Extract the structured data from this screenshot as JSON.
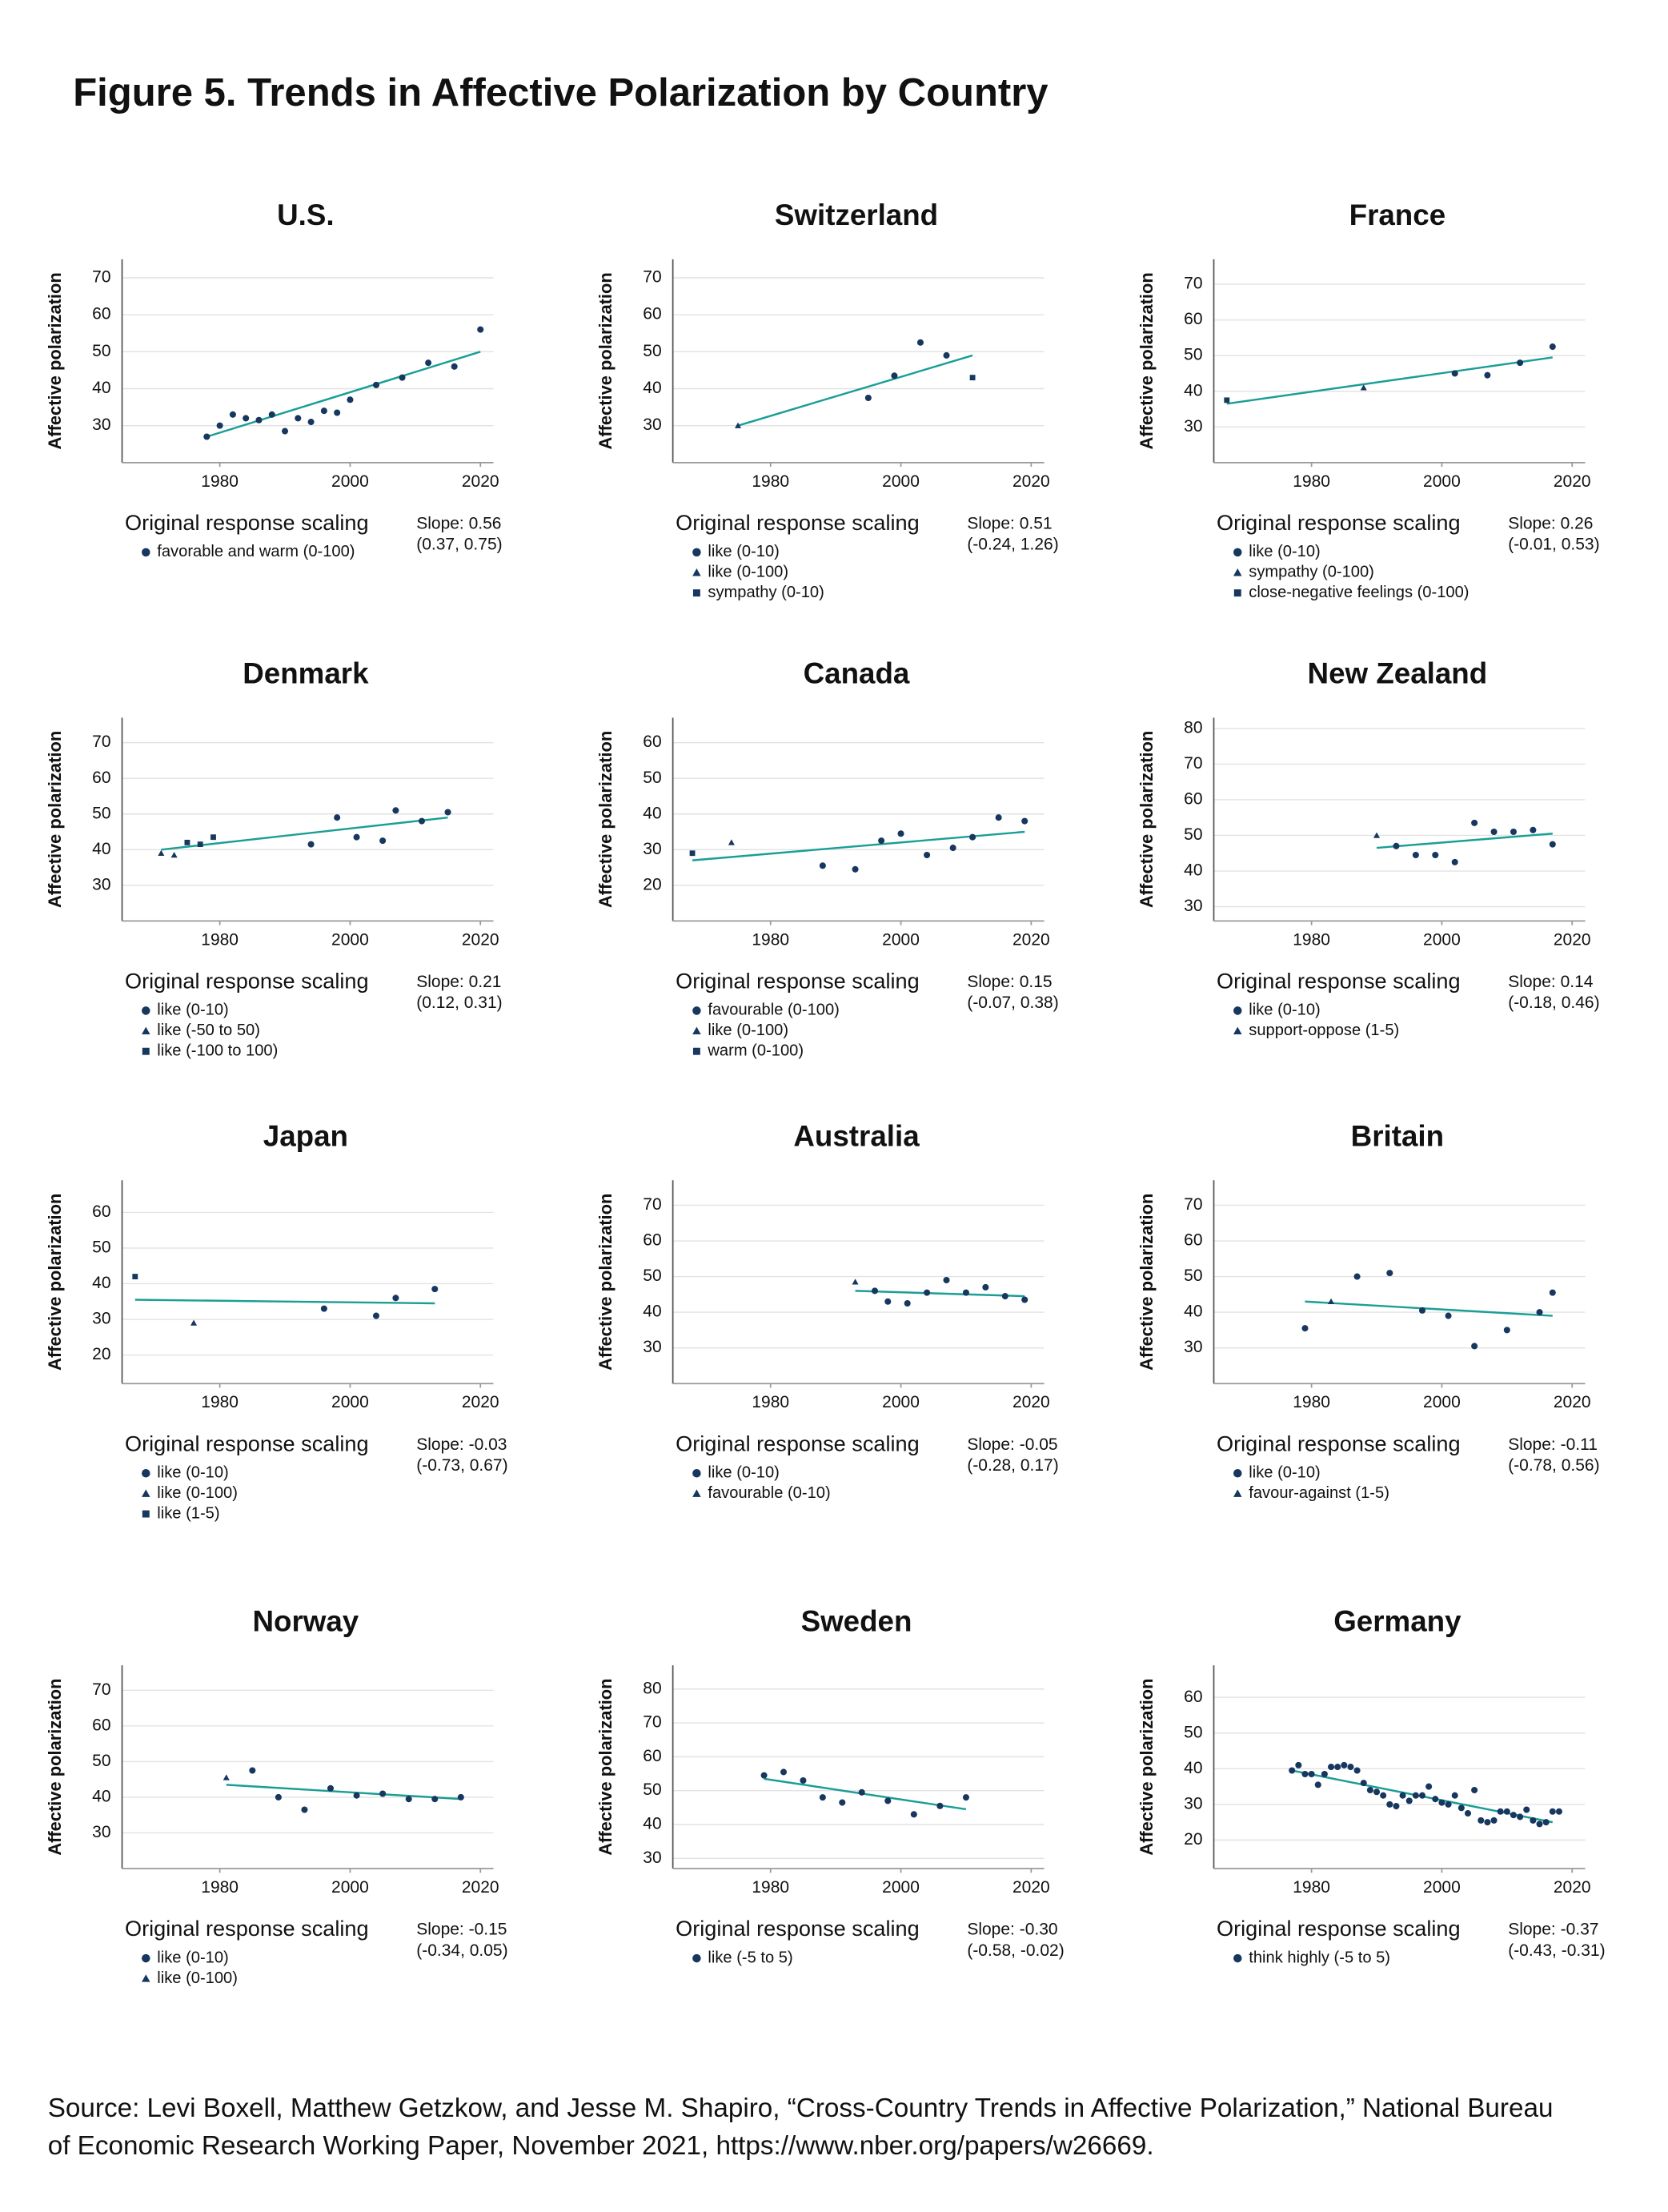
{
  "title": "Figure 5. Trends in Affective Polarization by Country",
  "chart_data": [
    {
      "type": "scatter",
      "title": "U.S.",
      "y_label": "Affective polarization",
      "legend_title": "Original response scaling",
      "slope_label": "Slope: 0.56",
      "slope_ci": "(0.37, 0.75)",
      "color": "#17375e",
      "trend_color": "#1a9e96",
      "xlim": [
        1965,
        2022
      ],
      "xticks": [
        1980,
        2000,
        2020
      ],
      "ylim": [
        20,
        75
      ],
      "yticks": [
        30,
        40,
        50,
        60,
        70
      ],
      "series": [
        {
          "name": "favorable and warm (0-100)",
          "marker": "circle",
          "x": [
            1978,
            1980,
            1982,
            1984,
            1986,
            1988,
            1990,
            1992,
            1994,
            1996,
            1998,
            2000,
            2004,
            2008,
            2012,
            2016,
            2020
          ],
          "values": [
            27,
            30,
            33,
            32,
            31.5,
            33,
            28.5,
            32,
            31,
            34,
            33.5,
            37,
            41,
            43,
            47,
            46,
            56
          ]
        }
      ],
      "trend": {
        "x": [
          1978,
          2020
        ],
        "values": [
          27,
          50
        ]
      }
    },
    {
      "type": "scatter",
      "title": "Switzerland",
      "y_label": "Affective polarization",
      "legend_title": "Original response scaling",
      "slope_label": "Slope: 0.51",
      "slope_ci": "(-0.24, 1.26)",
      "color": "#17375e",
      "trend_color": "#1a9e96",
      "xlim": [
        1965,
        2022
      ],
      "xticks": [
        1980,
        2000,
        2020
      ],
      "ylim": [
        20,
        75
      ],
      "yticks": [
        30,
        40,
        50,
        60,
        70
      ],
      "series": [
        {
          "name": "like (0-10)",
          "marker": "circle",
          "x": [
            1995,
            1999,
            2003,
            2007
          ],
          "values": [
            37.5,
            43.5,
            52.5,
            49
          ]
        },
        {
          "name": "like (0-100)",
          "marker": "triangle",
          "x": [
            1975
          ],
          "values": [
            30
          ]
        },
        {
          "name": "sympathy (0-10)",
          "marker": "square",
          "x": [
            2011
          ],
          "values": [
            43
          ]
        }
      ],
      "trend": {
        "x": [
          1975,
          2011
        ],
        "values": [
          30,
          49
        ]
      }
    },
    {
      "type": "scatter",
      "title": "France",
      "y_label": "Affective polarization",
      "legend_title": "Original response scaling",
      "slope_label": "Slope: 0.26",
      "slope_ci": "(-0.01, 0.53)",
      "color": "#17375e",
      "trend_color": "#1a9e96",
      "xlim": [
        1965,
        2022
      ],
      "xticks": [
        1980,
        2000,
        2020
      ],
      "ylim": [
        20,
        77
      ],
      "yticks": [
        30,
        40,
        50,
        60,
        70
      ],
      "series": [
        {
          "name": "like (0-10)",
          "marker": "circle",
          "x": [
            2002,
            2007,
            2012,
            2017
          ],
          "values": [
            45,
            44.5,
            48,
            52.5
          ]
        },
        {
          "name": "sympathy (0-100)",
          "marker": "triangle",
          "x": [
            1988
          ],
          "values": [
            41
          ]
        },
        {
          "name": "close-negative feelings (0-100)",
          "marker": "square",
          "x": [
            1967
          ],
          "values": [
            37.5
          ]
        }
      ],
      "trend": {
        "x": [
          1967,
          2017
        ],
        "values": [
          36.5,
          49.5
        ]
      }
    },
    {
      "type": "scatter",
      "title": "Denmark",
      "y_label": "Affective polarization",
      "legend_title": "Original response scaling",
      "slope_label": "Slope: 0.21",
      "slope_ci": "(0.12, 0.31)",
      "color": "#17375e",
      "trend_color": "#1a9e96",
      "xlim": [
        1965,
        2022
      ],
      "xticks": [
        1980,
        2000,
        2020
      ],
      "ylim": [
        20,
        77
      ],
      "yticks": [
        30,
        40,
        50,
        60,
        70
      ],
      "series": [
        {
          "name": "like (0-10)",
          "marker": "circle",
          "x": [
            1994,
            1998,
            2001,
            2005,
            2007,
            2011,
            2015
          ],
          "values": [
            41.5,
            49,
            43.5,
            42.5,
            51,
            48,
            50.5
          ]
        },
        {
          "name": "like (-50 to 50)",
          "marker": "triangle",
          "x": [
            1971,
            1973
          ],
          "values": [
            39,
            38.5
          ]
        },
        {
          "name": "like (-100 to 100)",
          "marker": "square",
          "x": [
            1975,
            1977,
            1979
          ],
          "values": [
            42,
            41.5,
            43.5
          ]
        }
      ],
      "trend": {
        "x": [
          1971,
          2015
        ],
        "values": [
          40,
          49
        ]
      }
    },
    {
      "type": "scatter",
      "title": "Canada",
      "y_label": "Affective polarization",
      "legend_title": "Original response scaling",
      "slope_label": "Slope: 0.15",
      "slope_ci": "(-0.07, 0.38)",
      "color": "#17375e",
      "trend_color": "#1a9e96",
      "xlim": [
        1965,
        2022
      ],
      "xticks": [
        1980,
        2000,
        2020
      ],
      "ylim": [
        10,
        67
      ],
      "yticks": [
        20,
        30,
        40,
        50,
        60
      ],
      "series": [
        {
          "name": "favourable (0-100)",
          "marker": "circle",
          "x": [
            1988,
            1993,
            1997,
            2000,
            2004,
            2008,
            2011,
            2015,
            2019
          ],
          "values": [
            25.5,
            24.5,
            32.5,
            34.5,
            28.5,
            30.5,
            33.5,
            39,
            38
          ]
        },
        {
          "name": "like (0-100)",
          "marker": "triangle",
          "x": [
            1974
          ],
          "values": [
            32
          ]
        },
        {
          "name": "warm (0-100)",
          "marker": "square",
          "x": [
            1968
          ],
          "values": [
            29
          ]
        }
      ],
      "trend": {
        "x": [
          1968,
          2019
        ],
        "values": [
          27,
          35
        ]
      }
    },
    {
      "type": "scatter",
      "title": "New Zealand",
      "y_label": "Affective polarization",
      "legend_title": "Original response scaling",
      "slope_label": "Slope: 0.14",
      "slope_ci": "(-0.18, 0.46)",
      "color": "#17375e",
      "trend_color": "#1a9e96",
      "xlim": [
        1965,
        2022
      ],
      "xticks": [
        1980,
        2000,
        2020
      ],
      "ylim": [
        26,
        83
      ],
      "yticks": [
        30,
        40,
        50,
        60,
        70,
        80
      ],
      "series": [
        {
          "name": "like (0-10)",
          "marker": "circle",
          "x": [
            1993,
            1996,
            1999,
            2002,
            2005,
            2008,
            2011,
            2014,
            2017
          ],
          "values": [
            47,
            44.5,
            44.5,
            42.5,
            53.5,
            51,
            51,
            51.5,
            47.5
          ]
        },
        {
          "name": "support-oppose (1-5)",
          "marker": "triangle",
          "x": [
            1990
          ],
          "values": [
            50
          ]
        }
      ],
      "trend": {
        "x": [
          1990,
          2017
        ],
        "values": [
          46.5,
          50.5
        ]
      }
    },
    {
      "type": "scatter",
      "title": "Japan",
      "y_label": "Affective polarization",
      "legend_title": "Original response scaling",
      "slope_label": "Slope: -0.03",
      "slope_ci": "(-0.73, 0.67)",
      "color": "#17375e",
      "trend_color": "#1a9e96",
      "xlim": [
        1965,
        2022
      ],
      "xticks": [
        1980,
        2000,
        2020
      ],
      "ylim": [
        12,
        69
      ],
      "yticks": [
        20,
        30,
        40,
        50,
        60
      ],
      "series": [
        {
          "name": "like (0-10)",
          "marker": "circle",
          "x": [
            1996,
            2004,
            2007,
            2013
          ],
          "values": [
            33,
            31,
            36,
            38.5
          ]
        },
        {
          "name": "like (0-100)",
          "marker": "triangle",
          "x": [
            1976
          ],
          "values": [
            29
          ]
        },
        {
          "name": "like (1-5)",
          "marker": "square",
          "x": [
            1967
          ],
          "values": [
            42
          ]
        }
      ],
      "trend": {
        "x": [
          1967,
          2013
        ],
        "values": [
          35.5,
          34.5
        ]
      }
    },
    {
      "type": "scatter",
      "title": "Australia",
      "y_label": "Affective polarization",
      "legend_title": "Original response scaling",
      "slope_label": "Slope: -0.05",
      "slope_ci": "(-0.28, 0.17)",
      "color": "#17375e",
      "trend_color": "#1a9e96",
      "xlim": [
        1965,
        2022
      ],
      "xticks": [
        1980,
        2000,
        2020
      ],
      "ylim": [
        20,
        77
      ],
      "yticks": [
        30,
        40,
        50,
        60,
        70
      ],
      "series": [
        {
          "name": "like (0-10)",
          "marker": "circle",
          "x": [
            1996,
            1998,
            2001,
            2004,
            2007,
            2010,
            2013,
            2016,
            2019
          ],
          "values": [
            46,
            43,
            42.5,
            45.5,
            49,
            45.5,
            47,
            44.5,
            43.5
          ]
        },
        {
          "name": "favourable (0-10)",
          "marker": "triangle",
          "x": [
            1993
          ],
          "values": [
            48.5
          ]
        }
      ],
      "trend": {
        "x": [
          1993,
          2019
        ],
        "values": [
          46,
          44.5
        ]
      }
    },
    {
      "type": "scatter",
      "title": "Britain",
      "y_label": "Affective polarization",
      "legend_title": "Original response scaling",
      "slope_label": "Slope: -0.11",
      "slope_ci": "(-0.78, 0.56)",
      "color": "#17375e",
      "trend_color": "#1a9e96",
      "xlim": [
        1965,
        2022
      ],
      "xticks": [
        1980,
        2000,
        2020
      ],
      "ylim": [
        20,
        77
      ],
      "yticks": [
        30,
        40,
        50,
        60,
        70
      ],
      "series": [
        {
          "name": "like (0-10)",
          "marker": "circle",
          "x": [
            1979,
            1987,
            1992,
            1997,
            2001,
            2005,
            2010,
            2015,
            2017
          ],
          "values": [
            35.5,
            50,
            51,
            40.5,
            39,
            30.5,
            35,
            40,
            45.5
          ]
        },
        {
          "name": "favour-against (1-5)",
          "marker": "triangle",
          "x": [
            1983
          ],
          "values": [
            43
          ]
        }
      ],
      "trend": {
        "x": [
          1979,
          2017
        ],
        "values": [
          43,
          39
        ]
      }
    },
    {
      "type": "scatter",
      "title": "Norway",
      "y_label": "Affective polarization",
      "legend_title": "Original response scaling",
      "slope_label": "Slope: -0.15",
      "slope_ci": "(-0.34, 0.05)",
      "color": "#17375e",
      "trend_color": "#1a9e96",
      "xlim": [
        1965,
        2022
      ],
      "xticks": [
        1980,
        2000,
        2020
      ],
      "ylim": [
        20,
        77
      ],
      "yticks": [
        30,
        40,
        50,
        60,
        70
      ],
      "series": [
        {
          "name": "like (0-10)",
          "marker": "circle",
          "x": [
            1985,
            1989,
            1993,
            1997,
            2001,
            2005,
            2009,
            2013,
            2017
          ],
          "values": [
            47.5,
            40,
            36.5,
            42.5,
            40.5,
            41,
            39.5,
            39.5,
            40
          ]
        },
        {
          "name": "like (0-100)",
          "marker": "triangle",
          "x": [
            1981
          ],
          "values": [
            45.5
          ]
        }
      ],
      "trend": {
        "x": [
          1981,
          2017
        ],
        "values": [
          43.5,
          39.5
        ]
      }
    },
    {
      "type": "scatter",
      "title": "Sweden",
      "y_label": "Affective polarization",
      "legend_title": "Original response scaling",
      "slope_label": "Slope: -0.30",
      "slope_ci": "(-0.58, -0.02)",
      "color": "#17375e",
      "trend_color": "#1a9e96",
      "xlim": [
        1965,
        2022
      ],
      "xticks": [
        1980,
        2000,
        2020
      ],
      "ylim": [
        27,
        87
      ],
      "yticks": [
        30,
        40,
        50,
        60,
        70,
        80
      ],
      "series": [
        {
          "name": "like (-5 to 5)",
          "marker": "circle",
          "x": [
            1979,
            1982,
            1985,
            1988,
            1991,
            1994,
            1998,
            2002,
            2006,
            2010
          ],
          "values": [
            54.5,
            55.5,
            53,
            48,
            46.5,
            49.5,
            47,
            43,
            45.5,
            48
          ]
        }
      ],
      "trend": {
        "x": [
          1979,
          2010
        ],
        "values": [
          53.5,
          44.5
        ]
      }
    },
    {
      "type": "scatter",
      "title": "Germany",
      "y_label": "Affective polarization",
      "legend_title": "Original response scaling",
      "slope_label": "Slope: -0.37",
      "slope_ci": "(-0.43, -0.31)",
      "color": "#17375e",
      "trend_color": "#1a9e96",
      "xlim": [
        1965,
        2022
      ],
      "xticks": [
        1980,
        2000,
        2020
      ],
      "ylim": [
        12,
        69
      ],
      "yticks": [
        20,
        30,
        40,
        50,
        60
      ],
      "series": [
        {
          "name": "think highly (-5 to 5)",
          "marker": "circle",
          "x": [
            1977,
            1978,
            1979,
            1980,
            1981,
            1982,
            1983,
            1984,
            1985,
            1986,
            1987,
            1988,
            1989,
            1990,
            1991,
            1992,
            1993,
            1994,
            1995,
            1996,
            1997,
            1998,
            1999,
            2000,
            2001,
            2002,
            2003,
            2004,
            2005,
            2006,
            2007,
            2008,
            2009,
            2010,
            2011,
            2012,
            2013,
            2014,
            2015,
            2016,
            2017,
            2018
          ],
          "values": [
            39.5,
            41,
            38.5,
            38.5,
            35.5,
            38.5,
            40.5,
            40.5,
            41,
            40.5,
            39.5,
            36,
            34,
            33.5,
            32.5,
            30,
            29.5,
            32.5,
            31,
            32.5,
            32.5,
            35,
            31.5,
            30.5,
            30,
            32.5,
            29,
            27.5,
            34,
            25.5,
            25,
            25.5,
            28,
            28,
            27,
            26.5,
            28.5,
            25.5,
            24.5,
            25,
            28,
            28
          ]
        }
      ],
      "trend": {
        "x": [
          1977,
          2017
        ],
        "values": [
          39.5,
          25
        ]
      }
    }
  ],
  "source": [
    "Source: Levi Boxell, Matthew Getzkow, and Jesse M. Shapiro, “Cross-Country Trends in Affective Polarization,” National Bureau",
    "of Economic Research Working Paper, November 2021, https://www.nber.org/papers/w26669."
  ]
}
